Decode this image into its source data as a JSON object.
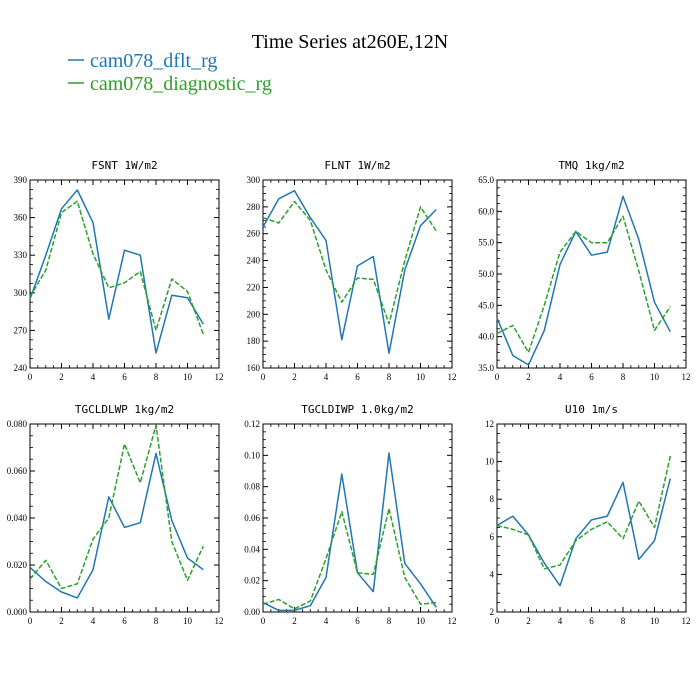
{
  "figure": {
    "title": "Time Series at260E,12N"
  },
  "colors": {
    "series_1": "#1f77b4",
    "series_2": "#2ca02c"
  },
  "chart_data": [
    {
      "type": "line",
      "title": "FSNT  1W/m2",
      "x": [
        0,
        1,
        2,
        3,
        4,
        5,
        6,
        7,
        8,
        9,
        10,
        11
      ],
      "xlim": [
        0,
        12
      ],
      "x_ticks": [
        "0",
        "2",
        "4",
        "6",
        "8",
        "10",
        "12"
      ],
      "ylim": [
        240,
        390
      ],
      "y_ticks": [
        "240",
        "270",
        "300",
        "330",
        "360",
        "390"
      ],
      "series": [
        {
          "name": "cam078_dflt_rg",
          "values": [
            295,
            330,
            367,
            382,
            356,
            279,
            334,
            330,
            252,
            298,
            296,
            275
          ]
        },
        {
          "name": "cam078_diagnostic_rg",
          "values": [
            297,
            318,
            364,
            373,
            331,
            304,
            308,
            317,
            270,
            311,
            301,
            267
          ]
        }
      ]
    },
    {
      "type": "line",
      "title": "FLNT  1W/m2",
      "x": [
        0,
        1,
        2,
        3,
        4,
        5,
        6,
        7,
        8,
        9,
        10,
        11
      ],
      "xlim": [
        0,
        12
      ],
      "x_ticks": [
        "0",
        "2",
        "4",
        "6",
        "8",
        "10",
        "12"
      ],
      "ylim": [
        160,
        300
      ],
      "y_ticks": [
        "160",
        "180",
        "200",
        "220",
        "240",
        "260",
        "280",
        "300"
      ],
      "series": [
        {
          "name": "cam078_dflt_rg",
          "values": [
            265,
            286,
            292,
            272,
            255,
            181,
            236,
            243,
            171,
            233,
            266,
            278
          ]
        },
        {
          "name": "cam078_diagnostic_rg",
          "values": [
            272,
            268,
            284,
            270,
            233,
            209,
            227,
            226,
            193,
            240,
            280,
            262
          ]
        }
      ]
    },
    {
      "type": "line",
      "title": "TMQ  1kg/m2",
      "x": [
        0,
        1,
        2,
        3,
        4,
        5,
        6,
        7,
        8,
        9,
        10,
        11
      ],
      "xlim": [
        0,
        12
      ],
      "x_ticks": [
        "0",
        "2",
        "4",
        "6",
        "8",
        "10",
        "12"
      ],
      "ylim": [
        35,
        65
      ],
      "y_ticks": [
        "35.0",
        "40.0",
        "45.0",
        "50.0",
        "55.0",
        "60.0",
        "65.0"
      ],
      "series": [
        {
          "name": "cam078_dflt_rg",
          "values": [
            43.0,
            37.0,
            35.5,
            41.0,
            51.5,
            56.8,
            53.0,
            53.5,
            62.4,
            55.5,
            45.5,
            40.8
          ]
        },
        {
          "name": "cam078_diagnostic_rg",
          "values": [
            40.5,
            41.8,
            37.5,
            45.0,
            53.5,
            56.8,
            55.0,
            55.0,
            59.2,
            50.5,
            41.0,
            44.8
          ]
        }
      ]
    },
    {
      "type": "line",
      "title": "TGCLDLWP  1kg/m2",
      "x": [
        0,
        1,
        2,
        3,
        4,
        5,
        6,
        7,
        8,
        9,
        10,
        11
      ],
      "xlim": [
        0,
        12
      ],
      "x_ticks": [
        "0",
        "2",
        "4",
        "6",
        "8",
        "10",
        "12"
      ],
      "ylim": [
        0,
        0.08
      ],
      "y_ticks": [
        "0.000",
        "0.020",
        "0.040",
        "0.060",
        "0.080"
      ],
      "series": [
        {
          "name": "cam078_dflt_rg",
          "values": [
            0.019,
            0.013,
            0.0085,
            0.006,
            0.018,
            0.049,
            0.036,
            0.038,
            0.0675,
            0.039,
            0.023,
            0.018
          ]
        },
        {
          "name": "cam078_diagnostic_rg",
          "values": [
            0.014,
            0.022,
            0.01,
            0.012,
            0.031,
            0.04,
            0.0715,
            0.055,
            0.0795,
            0.03,
            0.0135,
            0.028
          ]
        }
      ]
    },
    {
      "type": "line",
      "title": "TGCLDIWP  1.0kg/m2",
      "x": [
        0,
        1,
        2,
        3,
        4,
        5,
        6,
        7,
        8,
        9,
        10,
        11
      ],
      "xlim": [
        0,
        12
      ],
      "x_ticks": [
        "0",
        "2",
        "4",
        "6",
        "8",
        "10",
        "12"
      ],
      "ylim": [
        0,
        0.12
      ],
      "y_ticks": [
        "0.00",
        "0.02",
        "0.04",
        "0.06",
        "0.08",
        "0.10",
        "0.12"
      ],
      "series": [
        {
          "name": "cam078_dflt_rg",
          "values": [
            0.006,
            0.001,
            0.001,
            0.004,
            0.022,
            0.088,
            0.025,
            0.013,
            0.1015,
            0.031,
            0.018,
            0.003
          ]
        },
        {
          "name": "cam078_diagnostic_rg",
          "values": [
            0.005,
            0.008,
            0.002,
            0.007,
            0.034,
            0.064,
            0.025,
            0.024,
            0.066,
            0.022,
            0.005,
            0.006
          ]
        }
      ]
    },
    {
      "type": "line",
      "title": "U10  1m/s",
      "x": [
        0,
        1,
        2,
        3,
        4,
        5,
        6,
        7,
        8,
        9,
        10,
        11
      ],
      "xlim": [
        0,
        12
      ],
      "x_ticks": [
        "0",
        "2",
        "4",
        "6",
        "8",
        "10",
        "12"
      ],
      "ylim": [
        2,
        12
      ],
      "y_ticks": [
        "2",
        "4",
        "6",
        "8",
        "10",
        "12"
      ],
      "series": [
        {
          "name": "cam078_dflt_rg",
          "values": [
            6.6,
            7.1,
            6.1,
            4.6,
            3.4,
            5.9,
            6.9,
            7.1,
            8.9,
            4.8,
            5.8,
            9.1
          ]
        },
        {
          "name": "cam078_diagnostic_rg",
          "values": [
            6.6,
            6.4,
            6.1,
            4.3,
            4.5,
            5.8,
            6.4,
            6.8,
            5.9,
            7.9,
            6.5,
            10.3
          ]
        }
      ]
    }
  ]
}
